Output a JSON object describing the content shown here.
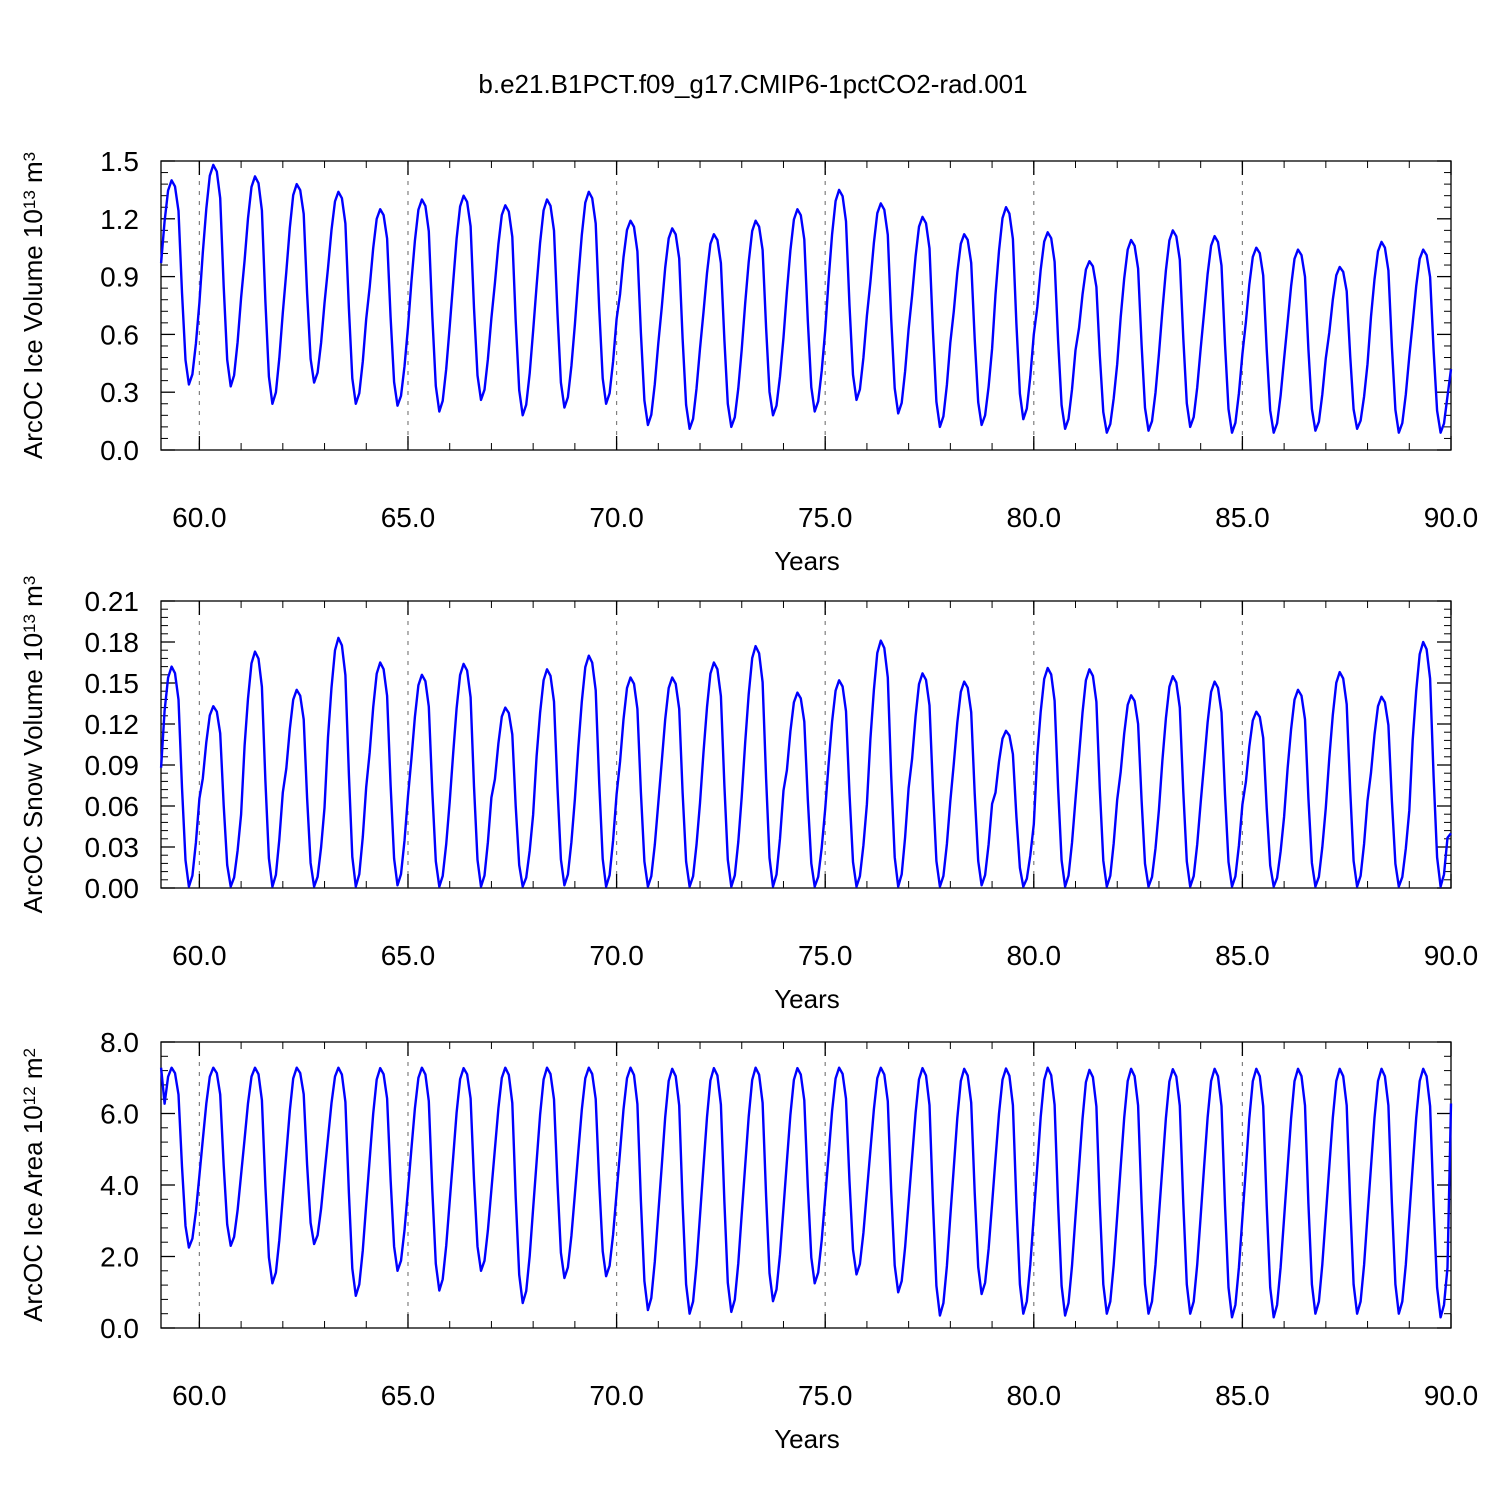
{
  "figure_title": "b.e21.B1PCT.f09_g17.CMIP6-1pctCO2-rad.001",
  "colors": {
    "line": "#0000ff",
    "axis": "#000000",
    "grid": "#808080"
  },
  "chart_data": [
    {
      "type": "line",
      "title": "",
      "xlabel": "Years",
      "ylabel": {
        "prefix": "ArcOC Ice Volume 10",
        "exp": "13",
        "unit": " m",
        "unit_exp": "3"
      },
      "xlim": [
        59.08,
        90.0
      ],
      "ylim": [
        0.0,
        1.5
      ],
      "xticks": [
        60.0,
        65.0,
        70.0,
        75.0,
        80.0,
        85.0,
        90.0
      ],
      "xtick_labels": [
        "60.0",
        "65.0",
        "70.0",
        "75.0",
        "80.0",
        "85.0",
        "90.0"
      ],
      "yticks": [
        0.0,
        0.3,
        0.6,
        0.9,
        1.2,
        1.5
      ],
      "ytick_labels": [
        "0.0",
        "0.3",
        "0.6",
        "0.9",
        "1.2",
        "1.5"
      ],
      "grid": "dashed vertical at major x ticks",
      "series": [
        {
          "x_start": 59.083,
          "x_step": 0.08333,
          "annual_max": [
            1.4,
            1.48,
            1.42,
            1.38,
            1.34,
            1.25,
            1.3,
            1.32,
            1.27,
            1.3,
            1.34,
            1.19,
            1.15,
            1.12,
            1.19,
            1.25,
            1.35,
            1.28,
            1.21,
            1.12,
            1.26,
            1.13,
            0.98,
            1.09,
            1.14,
            1.11,
            1.05,
            1.04,
            0.95,
            1.08,
            1.04
          ],
          "annual_min": [
            0.34,
            0.33,
            0.24,
            0.35,
            0.24,
            0.23,
            0.2,
            0.26,
            0.18,
            0.22,
            0.24,
            0.13,
            0.11,
            0.12,
            0.18,
            0.2,
            0.26,
            0.19,
            0.12,
            0.13,
            0.16,
            0.11,
            0.09,
            0.1,
            0.12,
            0.09,
            0.09,
            0.1,
            0.11,
            0.09,
            0.09
          ],
          "start_value": 0.97,
          "end_value": 0.42
        }
      ]
    },
    {
      "type": "line",
      "title": "",
      "xlabel": "Years",
      "ylabel": {
        "prefix": "ArcOC Snow Volume 10",
        "exp": "13",
        "unit": " m",
        "unit_exp": "3"
      },
      "xlim": [
        59.08,
        90.0
      ],
      "ylim": [
        0.0,
        0.21
      ],
      "xticks": [
        60.0,
        65.0,
        70.0,
        75.0,
        80.0,
        85.0,
        90.0
      ],
      "xtick_labels": [
        "60.0",
        "65.0",
        "70.0",
        "75.0",
        "80.0",
        "85.0",
        "90.0"
      ],
      "yticks": [
        0.0,
        0.03,
        0.06,
        0.09,
        0.12,
        0.15,
        0.18,
        0.21
      ],
      "ytick_labels": [
        "0.00",
        "0.03",
        "0.06",
        "0.09",
        "0.12",
        "0.15",
        "0.18",
        "0.21"
      ],
      "grid": "dashed vertical at major x ticks",
      "series": [
        {
          "x_start": 59.083,
          "x_step": 0.08333,
          "annual_max": [
            0.162,
            0.133,
            0.173,
            0.145,
            0.183,
            0.165,
            0.156,
            0.164,
            0.132,
            0.16,
            0.17,
            0.154,
            0.154,
            0.165,
            0.177,
            0.143,
            0.152,
            0.181,
            0.157,
            0.151,
            0.115,
            0.161,
            0.16,
            0.141,
            0.155,
            0.151,
            0.129,
            0.145,
            0.158,
            0.14,
            0.18
          ],
          "annual_min": [
            0.001,
            0.001,
            0.001,
            0.001,
            0.001,
            0.002,
            0.001,
            0.001,
            0.001,
            0.002,
            0.001,
            0.001,
            0.001,
            0.001,
            0.001,
            0.001,
            0.001,
            0.001,
            0.001,
            0.002,
            0.001,
            0.001,
            0.001,
            0.001,
            0.001,
            0.001,
            0.001,
            0.001,
            0.001,
            0.001,
            0.001
          ],
          "start_value": 0.088,
          "end_value": 0.04
        }
      ]
    },
    {
      "type": "line",
      "title": "",
      "xlabel": "Years",
      "ylabel": {
        "prefix": "ArcOC Ice Area 10",
        "exp": "12",
        "unit": " m",
        "unit_exp": "2"
      },
      "xlim": [
        59.08,
        90.0
      ],
      "ylim": [
        0.0,
        8.0
      ],
      "xticks": [
        60.0,
        65.0,
        70.0,
        75.0,
        80.0,
        85.0,
        90.0
      ],
      "xtick_labels": [
        "60.0",
        "65.0",
        "70.0",
        "75.0",
        "80.0",
        "85.0",
        "90.0"
      ],
      "yticks": [
        0.0,
        2.0,
        4.0,
        6.0,
        8.0
      ],
      "ytick_labels": [
        "0.0",
        "2.0",
        "4.0",
        "6.0",
        "8.0"
      ],
      "grid": "dashed vertical at major x ticks",
      "series": [
        {
          "x_start": 59.083,
          "x_step": 0.08333,
          "annual_max": [
            7.28,
            7.28,
            7.28,
            7.28,
            7.28,
            7.27,
            7.28,
            7.27,
            7.28,
            7.28,
            7.28,
            7.28,
            7.25,
            7.27,
            7.28,
            7.27,
            7.28,
            7.28,
            7.27,
            7.25,
            7.26,
            7.28,
            7.22,
            7.25,
            7.24,
            7.25,
            7.25,
            7.25,
            7.25,
            7.25,
            7.25
          ],
          "annual_min": [
            2.25,
            2.3,
            1.25,
            2.35,
            0.9,
            1.6,
            1.05,
            1.6,
            0.7,
            1.4,
            1.45,
            0.5,
            0.4,
            0.45,
            0.75,
            1.25,
            1.5,
            1.0,
            0.35,
            0.95,
            0.4,
            0.35,
            0.4,
            0.4,
            0.4,
            0.3,
            0.3,
            0.4,
            0.4,
            0.4,
            0.3
          ],
          "start_value": 7.28,
          "end_value": 6.28
        }
      ]
    }
  ]
}
